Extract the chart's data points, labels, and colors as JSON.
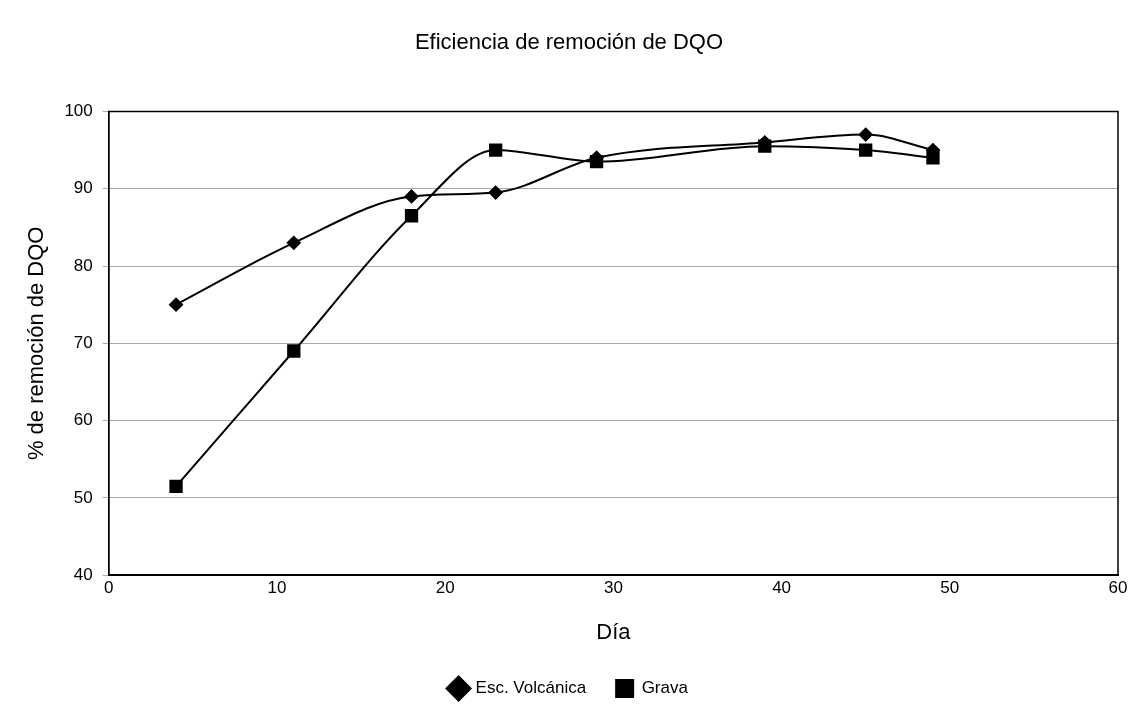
{
  "chart_data": {
    "type": "line",
    "title": "Eficiencia de remoción de DQO",
    "xlabel": "Día",
    "ylabel": "% de remoción de DQO",
    "x": [
      4,
      11,
      18,
      23,
      29,
      39,
      45,
      49
    ],
    "series": [
      {
        "name": "Esc. Volcánica",
        "color": "#000000",
        "marker": "diamond",
        "values": [
          75,
          83,
          89,
          89.5,
          94,
          96,
          97,
          95
        ]
      },
      {
        "name": "Grava",
        "color": "#000000",
        "marker": "square",
        "values": [
          51.5,
          69,
          86.5,
          95,
          93.5,
          95.5,
          95,
          94
        ]
      }
    ],
    "xlim": [
      0,
      60
    ],
    "xticks": [
      0,
      10,
      20,
      30,
      40,
      50,
      60
    ],
    "ylim": [
      40,
      100
    ],
    "yticks": [
      40,
      50,
      60,
      70,
      80,
      90,
      100
    ],
    "grid": "y",
    "legend": "bottom"
  }
}
